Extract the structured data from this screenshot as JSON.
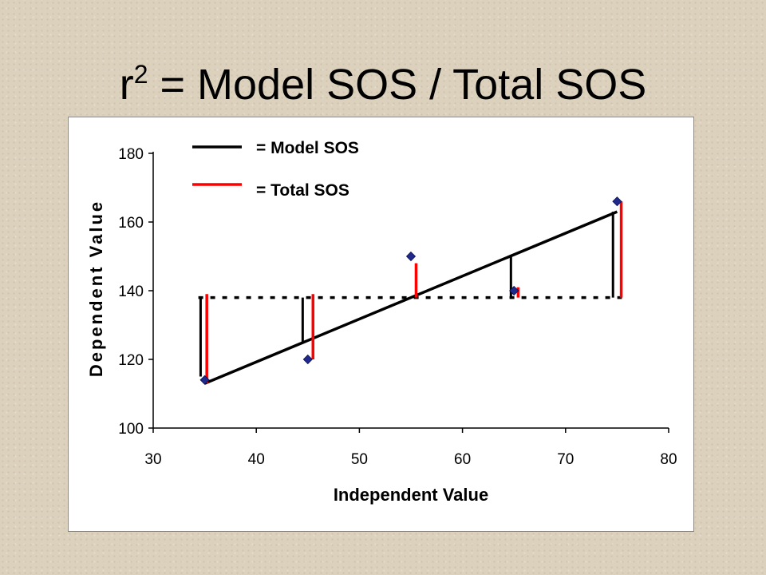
{
  "slide": {
    "title_prefix": "r",
    "title_sup": "2",
    "title_rest": " = Model SOS / Total SOS"
  },
  "chart_data": {
    "type": "scatter",
    "xlabel": "Independent Value",
    "ylabel": "Dependent Value",
    "xlim": [
      30,
      80
    ],
    "ylim": [
      100,
      180
    ],
    "x_ticks": [
      30,
      40,
      50,
      60,
      70,
      80
    ],
    "y_ticks": [
      100,
      120,
      140,
      160,
      180
    ],
    "points": [
      {
        "x": 35,
        "y": 114
      },
      {
        "x": 45,
        "y": 120
      },
      {
        "x": 55,
        "y": 150
      },
      {
        "x": 65,
        "y": 140
      },
      {
        "x": 75,
        "y": 166
      }
    ],
    "regression_line": {
      "x": [
        35,
        75
      ],
      "y": [
        113,
        163
      ]
    },
    "mean_line": {
      "y": 138,
      "x": [
        35,
        75
      ]
    },
    "model_sos_segments": [
      {
        "x": 34.6,
        "y1": 115,
        "y2": 138
      },
      {
        "x": 44.5,
        "y1": 125,
        "y2": 138
      },
      {
        "x": 64.7,
        "y1": 138,
        "y2": 150
      },
      {
        "x": 74.6,
        "y1": 138,
        "y2": 163
      }
    ],
    "total_sos_segments": [
      {
        "x": 35.2,
        "y1": 113,
        "y2": 139
      },
      {
        "x": 45.5,
        "y1": 120,
        "y2": 139
      },
      {
        "x": 55.5,
        "y1": 138,
        "y2": 148
      },
      {
        "x": 65.4,
        "y1": 138,
        "y2": 141
      },
      {
        "x": 75.4,
        "y1": 138,
        "y2": 166
      }
    ],
    "legend": [
      {
        "label": "= Model SOS",
        "color": "#000000"
      },
      {
        "label": "= Total SOS",
        "color": "#ff0000"
      }
    ],
    "colors": {
      "marker": "#1f2a8c",
      "model": "#000000",
      "total": "#ff0000"
    }
  }
}
